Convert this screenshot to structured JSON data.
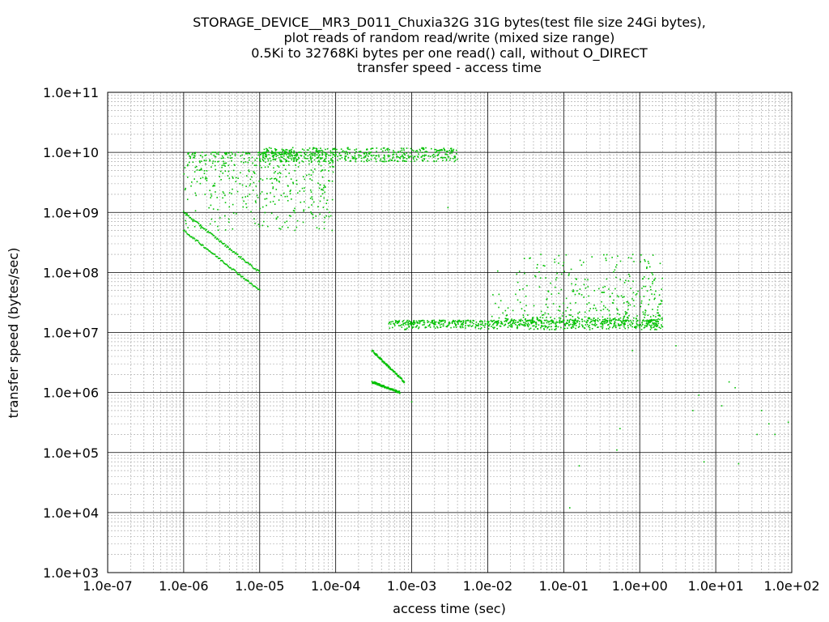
{
  "chart_data": {
    "type": "scatter",
    "title": [
      "STORAGE_DEVICE__MR3_D011_Chuxia32G 31G bytes(test file size 24Gi bytes),",
      "plot reads of random read/write (mixed size range)",
      "0.5Ki to 32768Ki bytes per one read() call, without O_DIRECT",
      "transfer speed - access time"
    ],
    "xlabel": "access time (sec)",
    "ylabel": "transfer speed (bytes/sec)",
    "x_scale": "log",
    "y_scale": "log",
    "xlim": [
      1e-07,
      100
    ],
    "ylim": [
      1000,
      100000000000
    ],
    "x_ticks": [
      "1.0e-07",
      "1.0e-06",
      "1.0e-05",
      "1.0e-04",
      "1.0e-03",
      "1.0e-02",
      "1.0e-01",
      "1.0e+00",
      "1.0e+01",
      "1.0e+02"
    ],
    "y_ticks": [
      "1.0e+03",
      "1.0e+04",
      "1.0e+05",
      "1.0e+06",
      "1.0e+07",
      "1.0e+08",
      "1.0e+09",
      "1.0e+10",
      "1.0e+11"
    ],
    "grid": true,
    "point_color": "#00c000",
    "clusters": [
      {
        "x_range": [
          1e-06,
          0.0001
        ],
        "y_range": [
          500000000.0,
          10000000000.0
        ]
      },
      {
        "x_range": [
          1e-05,
          0.004
        ],
        "y_range": [
          7000000000.0,
          12000000000.0
        ]
      },
      {
        "x_range": [
          0.0005,
          2.0
        ],
        "y_range": [
          11000000.0,
          16000000.0
        ]
      },
      {
        "x_range": [
          0.01,
          2.0
        ],
        "y_range": [
          16000000.0,
          200000000.0
        ]
      }
    ],
    "lines": [
      {
        "start": [
          1e-06,
          1000000000.0
        ],
        "end": [
          1e-05,
          100000000.0
        ]
      },
      {
        "start": [
          1e-06,
          500000000.0
        ],
        "end": [
          1e-05,
          50000000.0
        ]
      },
      {
        "start": [
          0.0003,
          1500000.0
        ],
        "end": [
          0.0007,
          1000000.0
        ]
      },
      {
        "start": [
          0.0003,
          5000000.0
        ],
        "end": [
          0.0008,
          1500000.0
        ]
      }
    ],
    "outliers": [
      [
        0.001,
        700000.0
      ],
      [
        0.003,
        1200000000.0
      ],
      [
        0.05,
        200000000.0
      ],
      [
        0.12,
        12000.0
      ],
      [
        0.16,
        60000.0
      ],
      [
        0.5,
        110000.0
      ],
      [
        0.55,
        250000.0
      ],
      [
        0.8,
        5000000.0
      ],
      [
        3.0,
        6000000.0
      ],
      [
        5.0,
        500000.0
      ],
      [
        6.0,
        900000.0
      ],
      [
        7.0,
        70000.0
      ],
      [
        12.0,
        600000.0
      ],
      [
        15.0,
        1500000.0
      ],
      [
        18.0,
        1200000.0
      ],
      [
        20.0,
        65000.0
      ],
      [
        35.0,
        200000.0
      ],
      [
        40.0,
        500000.0
      ],
      [
        50.0,
        300000.0
      ],
      [
        60.0,
        200000.0
      ],
      [
        90.0,
        320000.0
      ]
    ]
  }
}
